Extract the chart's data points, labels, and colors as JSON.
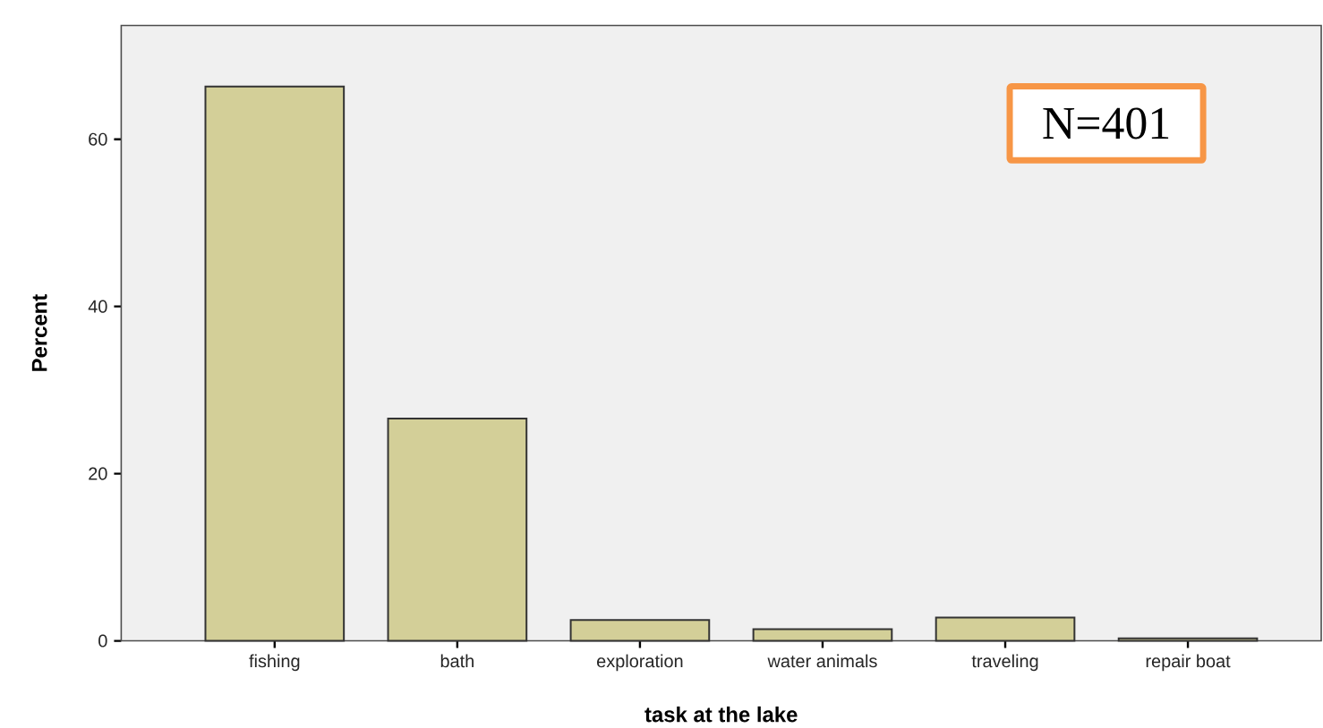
{
  "chart_data": {
    "type": "bar",
    "categories": [
      "fishing",
      "bath",
      "exploration",
      "water animals",
      "traveling",
      "repair boat"
    ],
    "values": [
      66.3,
      26.6,
      2.5,
      1.4,
      2.8,
      0.3
    ],
    "color": "#d3cf98",
    "xlabel": "task at the lake",
    "ylabel": "Percent",
    "ylim": [
      0,
      73.6
    ],
    "yticks": [
      0,
      20,
      40,
      60
    ],
    "annotations": [
      "N=401"
    ]
  }
}
